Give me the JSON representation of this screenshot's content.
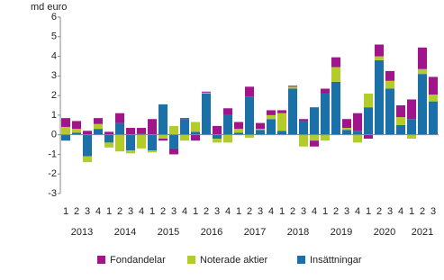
{
  "chart_data": {
    "type": "stacked-bar",
    "y_label": "md euro",
    "categories": [
      "1",
      "2",
      "3",
      "4",
      "1",
      "2",
      "3",
      "4",
      "1",
      "2",
      "3",
      "4",
      "1",
      "2",
      "3",
      "4",
      "1",
      "2",
      "3",
      "4",
      "1",
      "2",
      "3",
      "4",
      "1",
      "2",
      "3",
      "4",
      "1",
      "2",
      "3",
      "4",
      "1",
      "2",
      "3"
    ],
    "years": [
      "2013",
      "2014",
      "2015",
      "2016",
      "2017",
      "2018",
      "2019",
      "2020",
      "2021"
    ],
    "series": [
      {
        "name": "Insättningar",
        "color": "#1b70a8",
        "values": [
          -0.3,
          0.1,
          -1.1,
          0.3,
          -0.4,
          0.6,
          -0.8,
          0.05,
          -0.8,
          1.55,
          -0.7,
          0.8,
          0.15,
          2.1,
          -0.2,
          1.0,
          0.1,
          1.95,
          0.25,
          0.8,
          0.2,
          2.35,
          0.7,
          1.4,
          2.1,
          2.7,
          0.25,
          0.2,
          1.4,
          3.8,
          2.35,
          0.5,
          0.8,
          3.1,
          1.7
        ]
      },
      {
        "name": "Noterade aktier",
        "color": "#b3cc2c",
        "values": [
          0.4,
          0.2,
          -0.3,
          0.25,
          -0.25,
          -0.85,
          -0.15,
          -0.7,
          -0.1,
          -0.2,
          0.45,
          -0.3,
          0.5,
          0.05,
          -0.2,
          -0.4,
          0.2,
          -0.15,
          0.05,
          0.2,
          0.9,
          0.1,
          -0.6,
          -0.3,
          -0.3,
          0.75,
          0.1,
          -0.4,
          0.7,
          0.2,
          0.4,
          0.4,
          -0.2,
          0.25,
          0.35
        ]
      },
      {
        "name": "Fondandelar",
        "color": "#a0148c",
        "values": [
          0.45,
          0.4,
          0.2,
          0.3,
          0.15,
          0.5,
          0.35,
          0.3,
          0.8,
          -0.1,
          -0.3,
          0.05,
          -0.3,
          0.05,
          0.45,
          0.35,
          0.35,
          0.5,
          0.3,
          0.25,
          0.15,
          0.05,
          0.1,
          -0.3,
          0.25,
          0.5,
          0.45,
          0.9,
          -0.2,
          0.6,
          0.5,
          0.6,
          1.0,
          1.1,
          0.9
        ]
      }
    ],
    "ylim": [
      -3,
      6
    ],
    "yticks": [
      -3,
      -2,
      -1,
      0,
      1,
      2,
      3,
      4,
      5,
      6
    ]
  }
}
